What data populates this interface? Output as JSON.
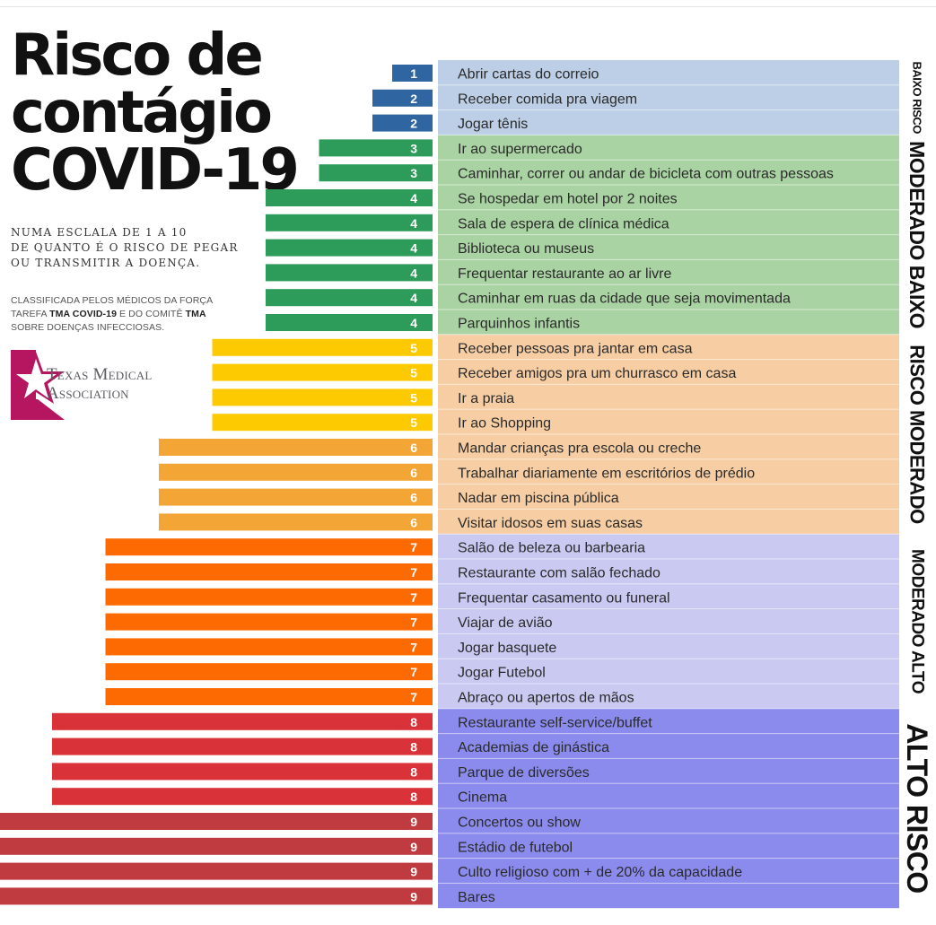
{
  "header": {
    "title_lines": [
      "Risco de",
      "contágio",
      "COVID-19"
    ],
    "subtitle_lines": [
      "NUMA ESCLALA DE 1 A 10",
      "DE QUANTO É O RISCO DE PEGAR",
      "OU TRANSMITIR A DOENÇA."
    ],
    "note": {
      "line1": "CLASSIFICADA PELOS MÉDICOS DA FORÇA",
      "line2_a": "TAREFA ",
      "line2_b": "TMA COVID-19",
      "line2_c": " E DO COMITÊ ",
      "line2_d": "TMA",
      "line3": "SOBRE DOENÇAS INFECCIOSAS."
    },
    "logo": {
      "line1": "Texas Medical",
      "line2": "Association",
      "color": "#b5165f"
    }
  },
  "chart_data": {
    "type": "bar",
    "orientation": "horizontal",
    "xlim": [
      0,
      9
    ],
    "categories": [
      {
        "name": "BAIXO RISCO",
        "color": "#bccfe6",
        "bar_color": "#2f65a0"
      },
      {
        "name": "MODERADO BAIXO",
        "color": "#aad3a3",
        "bar_color": "#2d9b5a"
      },
      {
        "name": "RISCO MODERADO",
        "color": "#f7cea4",
        "bar_color": "#fdc900"
      },
      {
        "name": "MODERADO ALTO",
        "color": "#c9c9f2",
        "bar_color": "#fd6a02"
      },
      {
        "name": "ALTO RISCO",
        "color": "#8b8bee",
        "bar_color": "#d93238"
      }
    ],
    "rows": [
      {
        "label": "Abrir cartas do correio",
        "value": 1,
        "category": 0
      },
      {
        "label": "Receber comida pra viagem",
        "value": 2,
        "category": 0
      },
      {
        "label": "Jogar tênis",
        "value": 2,
        "category": 0
      },
      {
        "label": "Ir ao supermercado",
        "value": 3,
        "category": 1
      },
      {
        "label": "Caminhar, correr ou andar de bicicleta com outras pessoas",
        "value": 3,
        "category": 1
      },
      {
        "label": "Se hospedar em hotel por 2 noites",
        "value": 4,
        "category": 1
      },
      {
        "label": "Sala de espera de clínica médica",
        "value": 4,
        "category": 1
      },
      {
        "label": "Biblioteca ou museus",
        "value": 4,
        "category": 1
      },
      {
        "label": "Frequentar restaurante ao ar livre",
        "value": 4,
        "category": 1
      },
      {
        "label": "Caminhar em ruas da cidade que seja movimentada",
        "value": 4,
        "category": 1
      },
      {
        "label": "Parquinhos infantis",
        "value": 4,
        "category": 1
      },
      {
        "label": "Receber pessoas pra jantar em casa",
        "value": 5,
        "category": 2
      },
      {
        "label": "Receber amigos pra um churrasco em casa",
        "value": 5,
        "category": 2
      },
      {
        "label": "Ir a praia",
        "value": 5,
        "category": 2
      },
      {
        "label": "Ir ao Shopping",
        "value": 5,
        "category": 2
      },
      {
        "label": "Mandar crianças pra escola ou creche",
        "value": 6,
        "category": 2
      },
      {
        "label": "Trabalhar diariamente em escritórios de prédio",
        "value": 6,
        "category": 2
      },
      {
        "label": "Nadar em piscina pública",
        "value": 6,
        "category": 2
      },
      {
        "label": "Visitar idosos em suas casas",
        "value": 6,
        "category": 2
      },
      {
        "label": "Salão de beleza ou barbearia",
        "value": 7,
        "category": 3
      },
      {
        "label": "Restaurante com salão fechado",
        "value": 7,
        "category": 3
      },
      {
        "label": "Frequentar casamento ou funeral",
        "value": 7,
        "category": 3
      },
      {
        "label": "Viajar de avião",
        "value": 7,
        "category": 3
      },
      {
        "label": "Jogar basquete",
        "value": 7,
        "category": 3
      },
      {
        "label": "Jogar Futebol",
        "value": 7,
        "category": 3
      },
      {
        "label": "Abraço ou apertos de mãos",
        "value": 7,
        "category": 3
      },
      {
        "label": "Restaurante self-service/buffet",
        "value": 8,
        "category": 4
      },
      {
        "label": "Academias de ginástica",
        "value": 8,
        "category": 4
      },
      {
        "label": "Parque de diversões",
        "value": 8,
        "category": 4
      },
      {
        "label": "Cinema",
        "value": 8,
        "category": 4
      },
      {
        "label": "Concertos ou show",
        "value": 9,
        "category": 4
      },
      {
        "label": "Estádio de futebol",
        "value": 9,
        "category": 4
      },
      {
        "label": "Culto religioso com + de 20% da capacidade",
        "value": 9,
        "category": 4
      },
      {
        "label": "Bares",
        "value": 9,
        "category": 4
      }
    ],
    "value_colors": {
      "1": "#2f65a0",
      "2": "#2f65a0",
      "3": "#2d9b5a",
      "4": "#2d9b5a",
      "5": "#fdc900",
      "6": "#f3a636",
      "7": "#fd6a02",
      "8": "#d93238",
      "9": "#bf3b3f"
    }
  }
}
